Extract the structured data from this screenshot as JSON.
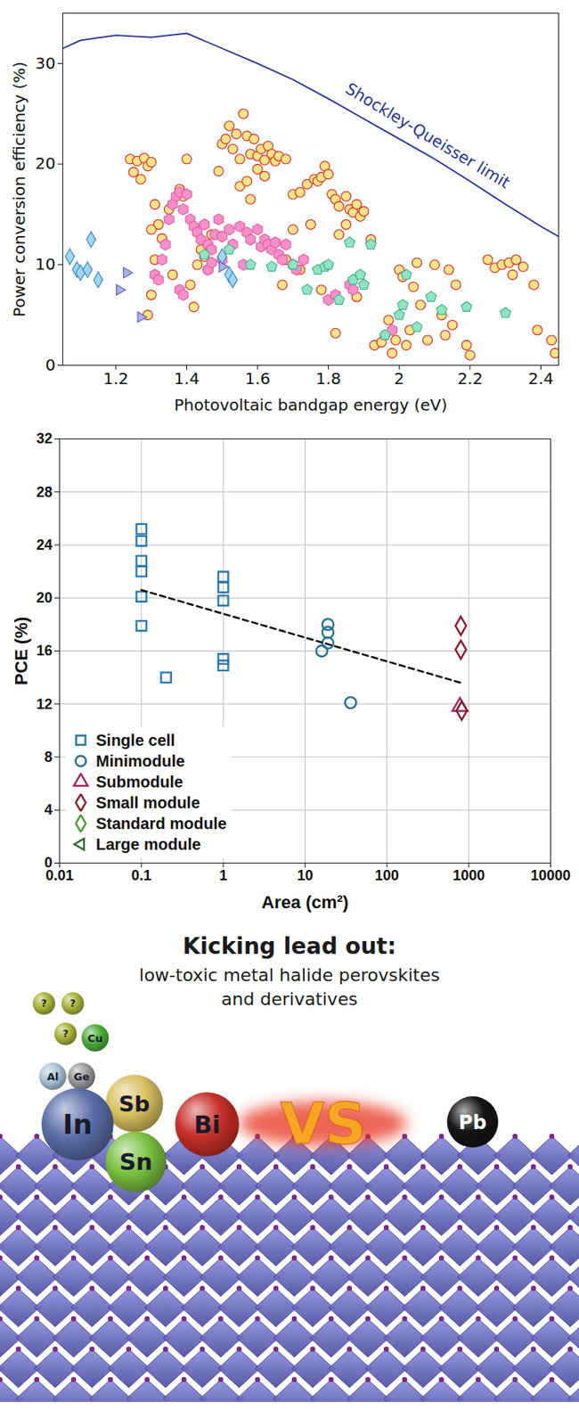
{
  "chart_data": [
    {
      "type": "scatter",
      "x_label": "Photovoltaic bandgap energy (eV)",
      "y_label": "Power conversion efficiency (%)",
      "xlim": [
        1.05,
        2.45
      ],
      "ylim": [
        0,
        35
      ],
      "xticks": [
        1.2,
        1.4,
        1.6,
        1.8,
        2,
        2.2,
        2.4
      ],
      "yticks": [
        0,
        10,
        20,
        30
      ],
      "grid": false,
      "series": [
        {
          "type": "line",
          "color": "#25339a",
          "x": [
            1.05,
            1.1,
            1.2,
            1.3,
            1.4,
            1.5,
            1.6,
            1.7,
            1.8,
            1.9,
            2.0,
            2.1,
            2.2,
            2.3,
            2.4,
            2.45
          ],
          "values": [
            31.5,
            32.3,
            32.8,
            32.6,
            33.0,
            31.5,
            30.0,
            28.4,
            26.5,
            24.5,
            22.5,
            20.5,
            18.3,
            16.0,
            13.8,
            12.8
          ]
        },
        {
          "type": "scatter",
          "marker": "circle",
          "color": "#fbe38a",
          "x": [
            1.24,
            1.26,
            1.28,
            1.25,
            1.27,
            1.29,
            1.3,
            1.31,
            1.32,
            1.3,
            1.33,
            1.31,
            1.3,
            1.29,
            1.4,
            1.38,
            1.39,
            1.41,
            1.42,
            1.43,
            1.45,
            1.46,
            1.49,
            1.5,
            1.51,
            1.52,
            1.53,
            1.54,
            1.55,
            1.56,
            1.57,
            1.58,
            1.59,
            1.6,
            1.61,
            1.62,
            1.63,
            1.64,
            1.65,
            1.66,
            1.55,
            1.57,
            1.58,
            1.6,
            1.62,
            1.68,
            1.7,
            1.72,
            1.74,
            1.76,
            1.77,
            1.78,
            1.79,
            1.8,
            1.81,
            1.82,
            1.83,
            1.85,
            1.86,
            1.87,
            1.88,
            1.89,
            1.9,
            1.85,
            1.83,
            1.92,
            1.75,
            1.7,
            1.67,
            1.72,
            1.68,
            1.78,
            1.88,
            1.82,
            1.93,
            1.95,
            1.96,
            1.97,
            1.98,
            1.99,
            2.0,
            2.01,
            2.02,
            2.03,
            2.05,
            2.06,
            2.04,
            2.08,
            2.1,
            2.12,
            2.13,
            2.14,
            2.15,
            2.16,
            2.19,
            2.2,
            2.25,
            2.27,
            2.29,
            2.31,
            2.33,
            2.32,
            2.35,
            2.38,
            2.39,
            2.43,
            2.44,
            1.47,
            1.35,
            1.44,
            1.36
          ],
          "values": [
            20.5,
            20.3,
            20.6,
            19.2,
            18.5,
            19.8,
            20.2,
            16.0,
            14.0,
            13.5,
            12.6,
            10.5,
            7.0,
            5.0,
            20.5,
            17.5,
            16.8,
            8.0,
            5.8,
            10.0,
            10.8,
            9.5,
            19.3,
            22.0,
            22.5,
            23.8,
            21.5,
            23.0,
            20.5,
            25.0,
            22.8,
            21.0,
            22.5,
            20.8,
            21.5,
            20.4,
            21.8,
            21.0,
            20.3,
            20.8,
            17.8,
            18.3,
            16.5,
            19.5,
            18.8,
            20.5,
            17.0,
            17.2,
            18.0,
            18.5,
            18.3,
            18.7,
            19.8,
            19.0,
            17.0,
            16.5,
            15.8,
            16.8,
            15.5,
            15.2,
            16.0,
            14.8,
            15.3,
            14.0,
            13.0,
            12.5,
            14.0,
            13.5,
            8.0,
            9.5,
            10.5,
            7.5,
            6.8,
            3.2,
            2.0,
            2.3,
            3.0,
            4.5,
            1.2,
            2.5,
            9.5,
            8.8,
            2.0,
            3.5,
            10.2,
            6.0,
            7.8,
            2.5,
            10.0,
            5.0,
            3.0,
            9.5,
            4.0,
            8.0,
            2.0,
            1.0,
            10.5,
            9.7,
            10.0,
            10.2,
            10.5,
            9.0,
            9.8,
            8.0,
            3.5,
            2.5,
            1.2,
            13.0,
            15.5,
            11.5,
            9.0
          ]
        },
        {
          "type": "scatter",
          "marker": "hexagon",
          "color": "#f590c8",
          "x": [
            1.31,
            1.32,
            1.33,
            1.34,
            1.35,
            1.36,
            1.37,
            1.38,
            1.39,
            1.4,
            1.41,
            1.42,
            1.43,
            1.44,
            1.45,
            1.46,
            1.47,
            1.48,
            1.49,
            1.5,
            1.52,
            1.53,
            1.55,
            1.57,
            1.58,
            1.6,
            1.61,
            1.62,
            1.63,
            1.64,
            1.65,
            1.66,
            1.67,
            1.68,
            1.7,
            1.71,
            1.73,
            1.46,
            1.47,
            1.5,
            1.56,
            1.8,
            1.82,
            1.86,
            1.87,
            1.98,
            1.38,
            1.39
          ],
          "values": [
            9.0,
            8.5,
            10.5,
            12.0,
            14.5,
            16.0,
            16.8,
            17.2,
            15.5,
            17.0,
            14.5,
            13.8,
            13.2,
            12.5,
            14.0,
            12.0,
            11.5,
            13.0,
            14.5,
            12.8,
            13.5,
            12.0,
            13.8,
            13.2,
            12.5,
            13.5,
            11.8,
            12.5,
            12.0,
            11.5,
            12.2,
            11.0,
            10.5,
            12.0,
            10.0,
            9.5,
            10.5,
            9.5,
            10.2,
            10.5,
            10.0,
            6.5,
            7.0,
            8.0,
            7.5,
            3.5,
            7.5,
            7.0
          ]
        },
        {
          "type": "scatter",
          "marker": "pentagon",
          "color": "#92e3c4",
          "x": [
            1.45,
            1.52,
            1.58,
            1.64,
            1.7,
            1.74,
            1.77,
            1.79,
            1.83,
            1.86,
            1.87,
            1.89,
            1.9,
            1.92,
            1.96,
            2.0,
            2.01,
            2.02,
            2.05,
            2.09,
            2.12,
            2.19,
            2.3,
            1.8
          ],
          "values": [
            11.0,
            11.5,
            10.0,
            9.8,
            10.0,
            7.5,
            9.5,
            9.8,
            6.5,
            12.2,
            8.5,
            9.0,
            8.0,
            12.0,
            3.0,
            5.0,
            6.0,
            9.0,
            3.8,
            6.8,
            5.5,
            5.8,
            5.2,
            10.0
          ]
        },
        {
          "type": "scatter",
          "marker": "diamond",
          "color": "#a3d4f2",
          "x": [
            1.07,
            1.09,
            1.1,
            1.12,
            1.13,
            1.15,
            1.5,
            1.52,
            1.53
          ],
          "values": [
            10.8,
            9.5,
            9.2,
            9.5,
            12.5,
            8.5,
            10.8,
            9.0,
            8.5
          ]
        },
        {
          "type": "scatter",
          "marker": "triangle-right",
          "color": "#aeb0ea",
          "x": [
            1.21,
            1.23,
            1.27,
            1.5
          ],
          "values": [
            7.5,
            9.2,
            4.8,
            9.8
          ]
        }
      ],
      "annotations": [
        {
          "text": "Shockley-Queisser limit",
          "x": 2.08,
          "y": 22.8
        }
      ]
    },
    {
      "type": "scatter",
      "x_label": "Area (cm²)",
      "y_label": "PCE (%)",
      "log": "x",
      "xlim": [
        0.01,
        10000
      ],
      "ylim": [
        0,
        32
      ],
      "xticks": [
        0.01,
        0.1,
        1,
        10,
        100,
        1000,
        10000
      ],
      "yticks": [
        0,
        4,
        8,
        12,
        16,
        20,
        24,
        28,
        32
      ],
      "grid": true,
      "legend": "lower left",
      "series": [
        {
          "name": "Single cell",
          "marker": "open-square",
          "color": "#2b7bb0",
          "x": [
            0.1,
            0.1,
            0.1,
            0.1,
            0.1,
            0.1,
            0.2,
            1,
            1,
            1,
            1,
            1
          ],
          "values": [
            25.2,
            24.3,
            22.8,
            22.0,
            20.1,
            17.9,
            14.0,
            21.6,
            20.8,
            19.8,
            15.4,
            14.9
          ]
        },
        {
          "name": "Minimodule",
          "marker": "open-circle",
          "color": "#266f92",
          "x": [
            16,
            19,
            19,
            19,
            36
          ],
          "values": [
            16.0,
            18.0,
            17.4,
            16.6,
            12.1
          ]
        },
        {
          "name": "Submodule",
          "marker": "open-triangle",
          "color": "#a02a5c",
          "x": [
            780
          ],
          "values": [
            11.8
          ]
        },
        {
          "name": "Small module",
          "marker": "open-diamond",
          "color": "#8b1c2c",
          "x": [
            800,
            800,
            820
          ],
          "values": [
            17.9,
            16.1,
            11.5
          ]
        },
        {
          "name": "Standard module",
          "marker": "open-diamond",
          "color": "#4f9a3a",
          "x": [],
          "values": []
        },
        {
          "name": "Large module",
          "marker": "open-triangle-left",
          "color": "#2e6b2e",
          "x": [],
          "values": []
        },
        {
          "type": "line",
          "line_style": "dashed",
          "color": "#000000",
          "x": [
            0.1,
            800
          ],
          "values": [
            20.6,
            13.6
          ]
        }
      ]
    }
  ],
  "graphic": {
    "title": "Kicking lead out:",
    "subtitle": "low-toxic metal halide perovskites and derivatives",
    "elements": [
      {
        "label": "?",
        "color": "#a8b43a"
      },
      {
        "label": "?",
        "color": "#a8b43a"
      },
      {
        "label": "?",
        "color": "#a8b43a"
      },
      {
        "label": "Cu",
        "color": "#4caf3a"
      },
      {
        "label": "Al",
        "color": "#a9c4d8"
      },
      {
        "label": "Ge",
        "color": "#9a9a9a"
      },
      {
        "label": "Sb",
        "color": "#d8c060"
      },
      {
        "label": "Bi",
        "color": "#c8302a"
      },
      {
        "label": "In",
        "color": "#5a6ea8"
      },
      {
        "label": "Sn",
        "color": "#7ac040"
      }
    ],
    "versus": "VS",
    "lead": {
      "label": "Pb",
      "color": "#151515"
    }
  }
}
